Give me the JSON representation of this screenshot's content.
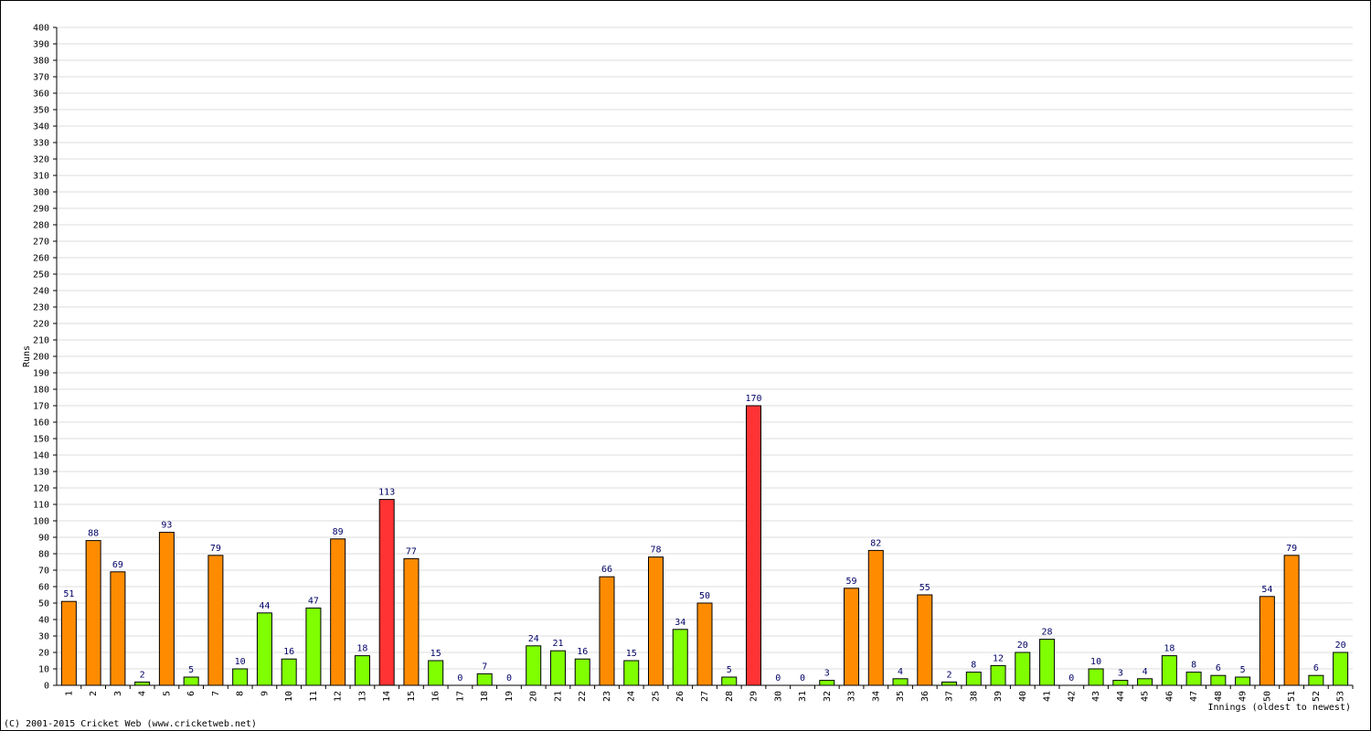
{
  "chart_data": {
    "type": "bar",
    "y_label": "Runs",
    "x_label": "Innings (oldest to newest)",
    "footer": "(C) 2001-2015 Cricket Web (www.cricketweb.net)",
    "categories": [
      "1",
      "2",
      "3",
      "4",
      "5",
      "6",
      "7",
      "8",
      "9",
      "10",
      "11",
      "12",
      "13",
      "14",
      "15",
      "16",
      "17",
      "18",
      "19",
      "20",
      "21",
      "22",
      "23",
      "24",
      "25",
      "26",
      "27",
      "28",
      "29",
      "30",
      "31",
      "32",
      "33",
      "34",
      "35",
      "36",
      "37",
      "38",
      "39",
      "40",
      "41",
      "42",
      "43",
      "44",
      "45",
      "46",
      "47",
      "48",
      "49",
      "50",
      "51",
      "52",
      "53"
    ],
    "values": [
      51,
      88,
      69,
      2,
      93,
      5,
      79,
      10,
      44,
      16,
      47,
      89,
      18,
      113,
      77,
      15,
      0,
      7,
      0,
      24,
      21,
      16,
      66,
      15,
      78,
      34,
      50,
      5,
      170,
      0,
      0,
      3,
      59,
      82,
      4,
      55,
      2,
      8,
      12,
      20,
      28,
      0,
      10,
      3,
      4,
      18,
      8,
      6,
      5,
      54,
      79,
      6,
      20
    ],
    "colors": [
      "#ff8c00",
      "#ff8c00",
      "#ff8c00",
      "#80ff00",
      "#ff8c00",
      "#80ff00",
      "#ff8c00",
      "#80ff00",
      "#80ff00",
      "#80ff00",
      "#80ff00",
      "#ff8c00",
      "#80ff00",
      "#ff3333",
      "#ff8c00",
      "#80ff00",
      "#80ff00",
      "#80ff00",
      "#80ff00",
      "#80ff00",
      "#80ff00",
      "#80ff00",
      "#ff8c00",
      "#80ff00",
      "#ff8c00",
      "#80ff00",
      "#ff8c00",
      "#80ff00",
      "#ff3333",
      "#80ff00",
      "#80ff00",
      "#80ff00",
      "#ff8c00",
      "#ff8c00",
      "#80ff00",
      "#ff8c00",
      "#80ff00",
      "#80ff00",
      "#80ff00",
      "#80ff00",
      "#80ff00",
      "#80ff00",
      "#80ff00",
      "#80ff00",
      "#80ff00",
      "#80ff00",
      "#80ff00",
      "#80ff00",
      "#80ff00",
      "#ff8c00",
      "#ff8c00",
      "#80ff00",
      "#80ff00"
    ],
    "ylim": [
      0,
      400
    ],
    "yticks": [
      0,
      10,
      20,
      30,
      40,
      50,
      60,
      70,
      80,
      90,
      100,
      110,
      120,
      130,
      140,
      150,
      160,
      170,
      180,
      190,
      200,
      210,
      220,
      230,
      240,
      250,
      260,
      270,
      280,
      290,
      300,
      310,
      320,
      330,
      340,
      350,
      360,
      370,
      380,
      390,
      400
    ],
    "grid": true
  }
}
